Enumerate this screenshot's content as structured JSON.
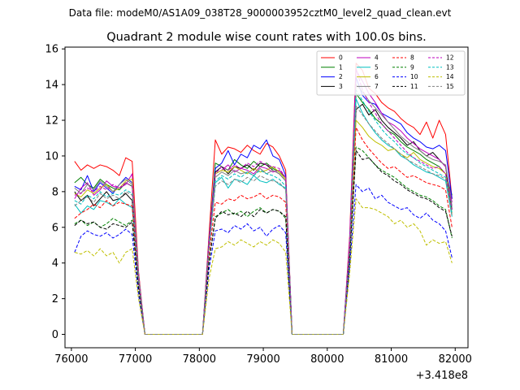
{
  "chart_data": {
    "type": "line",
    "suptitle": "Data file: modeM0/AS1A09_038T28_9000003952cztM0_level2_quad_clean.evt",
    "title": "Quadrant 2 module wise count rates with 100.0s bins.",
    "xlabel": "",
    "ylabel": "",
    "x_offset_label": "+3.418e8",
    "xlim": [
      75900,
      82200
    ],
    "ylim": [
      -0.75,
      16.1
    ],
    "x_ticks": [
      76000,
      77000,
      78000,
      79000,
      80000,
      81000,
      82000
    ],
    "x_tick_labels": [
      "76000",
      "77000",
      "78000",
      "79000",
      "80000",
      "81000",
      "82000"
    ],
    "y_ticks": [
      0,
      2,
      4,
      6,
      8,
      10,
      12,
      14,
      16
    ],
    "y_tick_labels": [
      "0",
      "2",
      "4",
      "6",
      "8",
      "10",
      "12",
      "14",
      "16"
    ],
    "grid": false,
    "legend_position": "upper right",
    "legend_columns": 4,
    "x": [
      76050,
      76150,
      76250,
      76350,
      76450,
      76550,
      76650,
      76750,
      76850,
      76950,
      77050,
      77150,
      77250,
      77350,
      77450,
      77550,
      77650,
      77750,
      77850,
      77950,
      78050,
      78150,
      78250,
      78350,
      78450,
      78550,
      78650,
      78750,
      78850,
      78950,
      79050,
      79150,
      79250,
      79350,
      79450,
      79550,
      79650,
      79750,
      79850,
      79950,
      80050,
      80150,
      80250,
      80350,
      80450,
      80550,
      80650,
      80750,
      80850,
      80950,
      81050,
      81150,
      81250,
      81350,
      81450,
      81550,
      81650,
      81750,
      81850,
      81950
    ],
    "series": [
      {
        "name": "0",
        "color": "#ff0000",
        "dash": false,
        "values": [
          9.7,
          9.2,
          9.5,
          9.3,
          9.5,
          9.4,
          9.2,
          8.9,
          9.9,
          9.7,
          3.5,
          0,
          0,
          0,
          0,
          0,
          0,
          0,
          0,
          0,
          0,
          5.5,
          10.9,
          10.1,
          10.5,
          10.4,
          10.2,
          10.6,
          10.3,
          10.1,
          10.7,
          10.5,
          10.0,
          9.2,
          0,
          0,
          0,
          0,
          0,
          0,
          0,
          0,
          0,
          5.5,
          15.2,
          14.8,
          13.8,
          13.5,
          13.0,
          12.7,
          12.5,
          12.1,
          11.8,
          11.6,
          11.2,
          11.9,
          11.0,
          12.0,
          11.2,
          7.6
        ]
      },
      {
        "name": "1",
        "color": "#008000",
        "dash": false,
        "values": [
          8.5,
          8.8,
          8.4,
          8.2,
          8.7,
          8.4,
          8.2,
          8.1,
          8.5,
          8.3,
          3.2,
          0,
          0,
          0,
          0,
          0,
          0,
          0,
          0,
          0,
          0,
          5.1,
          9.6,
          9.4,
          9.2,
          9.8,
          9.5,
          9.3,
          9.7,
          9.4,
          9.6,
          9.3,
          9.1,
          8.8,
          0,
          0,
          0,
          0,
          0,
          0,
          0,
          0,
          0,
          5.0,
          13.5,
          13.0,
          12.6,
          12.1,
          11.8,
          11.4,
          11.2,
          10.8,
          10.5,
          10.3,
          10.1,
          9.8,
          9.6,
          9.4,
          9.0,
          7.8
        ]
      },
      {
        "name": "2",
        "color": "#0000ff",
        "dash": false,
        "values": [
          8.3,
          8.1,
          8.9,
          8.0,
          8.5,
          8.2,
          7.9,
          8.4,
          8.8,
          8.5,
          3.3,
          0,
          0,
          0,
          0,
          0,
          0,
          0,
          0,
          0,
          0,
          5.2,
          9.3,
          9.6,
          10.3,
          9.5,
          10.1,
          9.9,
          10.6,
          10.4,
          10.9,
          10.0,
          9.8,
          8.9,
          0,
          0,
          0,
          0,
          0,
          0,
          0,
          0,
          0,
          5.2,
          14.4,
          13.4,
          13.0,
          12.9,
          12.4,
          12.2,
          12.0,
          11.8,
          11.3,
          11.0,
          10.8,
          10.5,
          10.4,
          10.6,
          10.3,
          7.6
        ]
      },
      {
        "name": "3",
        "color": "#000000",
        "dash": false,
        "values": [
          8.0,
          7.5,
          7.8,
          7.2,
          7.6,
          8.0,
          7.5,
          7.6,
          7.9,
          7.5,
          3.1,
          0,
          0,
          0,
          0,
          0,
          0,
          0,
          0,
          0,
          0,
          5.0,
          9.1,
          9.4,
          9.0,
          9.4,
          9.3,
          9.5,
          9.2,
          9.6,
          9.5,
          9.2,
          9.0,
          8.6,
          0,
          0,
          0,
          0,
          0,
          0,
          0,
          0,
          0,
          4.9,
          12.6,
          12.9,
          12.3,
          12.6,
          12.0,
          11.6,
          11.3,
          11.0,
          10.6,
          10.8,
          10.3,
          10.0,
          10.2,
          9.8,
          9.4,
          7.0
        ]
      },
      {
        "name": "4",
        "color": "#bf00bf",
        "dash": false,
        "values": [
          7.6,
          8.2,
          8.5,
          7.8,
          8.1,
          8.6,
          8.3,
          8.2,
          8.4,
          9.0,
          3.4,
          0,
          0,
          0,
          0,
          0,
          0,
          0,
          0,
          0,
          0,
          5.1,
          9.0,
          9.2,
          9.5,
          9.1,
          9.3,
          9.2,
          9.0,
          9.4,
          9.3,
          9.1,
          9.2,
          8.8,
          0,
          0,
          0,
          0,
          0,
          0,
          0,
          0,
          0,
          5.3,
          14.8,
          14.2,
          13.5,
          13.0,
          12.4,
          11.9,
          11.7,
          11.4,
          11.0,
          10.7,
          10.4,
          10.2,
          10.0,
          9.8,
          9.4,
          7.4
        ]
      },
      {
        "name": "5",
        "color": "#00bfbf",
        "dash": false,
        "values": [
          7.3,
          6.8,
          7.2,
          7.0,
          7.5,
          7.4,
          7.2,
          7.6,
          7.3,
          7.1,
          2.9,
          0,
          0,
          0,
          0,
          0,
          0,
          0,
          0,
          0,
          0,
          4.8,
          8.5,
          8.8,
          8.2,
          8.7,
          8.6,
          8.4,
          8.9,
          8.6,
          8.5,
          8.7,
          8.4,
          8.2,
          0,
          0,
          0,
          0,
          0,
          0,
          0,
          0,
          0,
          4.7,
          13.2,
          12.4,
          11.8,
          11.3,
          10.9,
          10.6,
          10.4,
          10.0,
          9.8,
          9.5,
          9.3,
          9.1,
          9.0,
          8.8,
          8.6,
          6.6
        ]
      },
      {
        "name": "6",
        "color": "#bfbf00",
        "dash": false,
        "values": [
          7.9,
          7.7,
          8.1,
          7.9,
          8.2,
          8.4,
          8.0,
          8.2,
          8.6,
          8.7,
          3.3,
          0,
          0,
          0,
          0,
          0,
          0,
          0,
          0,
          0,
          0,
          5.0,
          9.0,
          9.2,
          9.1,
          9.4,
          9.2,
          9.0,
          9.3,
          9.1,
          9.2,
          9.4,
          9.1,
          8.7,
          0,
          0,
          0,
          0,
          0,
          0,
          0,
          0,
          0,
          4.8,
          12.0,
          11.6,
          11.1,
          10.8,
          10.6,
          10.3,
          10.4,
          10.1,
          9.9,
          10.2,
          9.8,
          9.6,
          9.4,
          9.3,
          9.0,
          6.8
        ]
      },
      {
        "name": "7",
        "color": "#808080",
        "dash": false,
        "values": [
          8.2,
          7.9,
          8.4,
          8.1,
          8.6,
          8.3,
          8.0,
          8.4,
          8.7,
          8.4,
          3.3,
          0,
          0,
          0,
          0,
          0,
          0,
          0,
          0,
          0,
          0,
          5.0,
          8.8,
          9.1,
          8.9,
          9.2,
          9.0,
          9.1,
          8.9,
          9.3,
          9.0,
          9.2,
          9.0,
          8.6,
          0,
          0,
          0,
          0,
          0,
          0,
          0,
          0,
          0,
          5.0,
          14.0,
          13.6,
          13.1,
          12.7,
          12.3,
          11.9,
          11.5,
          11.1,
          10.8,
          10.5,
          10.3,
          10.0,
          9.8,
          9.7,
          9.5,
          7.2
        ]
      },
      {
        "name": "8",
        "color": "#ff0000",
        "dash": true,
        "values": [
          6.5,
          6.8,
          7.0,
          7.3,
          7.1,
          7.5,
          7.2,
          7.4,
          7.3,
          7.2,
          2.8,
          0,
          0,
          0,
          0,
          0,
          0,
          0,
          0,
          0,
          0,
          4.4,
          7.4,
          7.3,
          7.6,
          7.5,
          7.8,
          7.6,
          7.7,
          7.9,
          7.6,
          7.8,
          7.7,
          7.4,
          0,
          0,
          0,
          0,
          0,
          0,
          0,
          0,
          0,
          4.5,
          11.6,
          10.9,
          10.4,
          10.0,
          9.6,
          9.3,
          9.4,
          9.1,
          8.8,
          8.9,
          8.7,
          8.5,
          8.4,
          8.3,
          8.1,
          6.0
        ]
      },
      {
        "name": "9",
        "color": "#008000",
        "dash": true,
        "values": [
          6.2,
          6.4,
          6.1,
          6.3,
          6.0,
          6.2,
          6.5,
          6.3,
          6.1,
          6.4,
          2.6,
          0,
          0,
          0,
          0,
          0,
          0,
          0,
          0,
          0,
          0,
          4.0,
          6.6,
          6.8,
          7.0,
          6.7,
          6.9,
          6.6,
          6.9,
          7.1,
          6.8,
          7.0,
          6.9,
          6.5,
          0,
          0,
          0,
          0,
          0,
          0,
          0,
          0,
          0,
          4.3,
          10.5,
          10.3,
          9.9,
          9.5,
          9.2,
          9.0,
          8.8,
          8.5,
          8.2,
          8.0,
          7.8,
          7.7,
          7.5,
          7.2,
          7.0,
          5.4
        ]
      },
      {
        "name": "10",
        "color": "#0000ff",
        "dash": true,
        "values": [
          4.6,
          5.5,
          5.8,
          5.6,
          5.5,
          5.7,
          5.4,
          5.6,
          5.9,
          5.6,
          2.2,
          0,
          0,
          0,
          0,
          0,
          0,
          0,
          0,
          0,
          0,
          3.6,
          5.8,
          5.9,
          5.7,
          6.1,
          5.9,
          6.2,
          5.8,
          6.0,
          5.5,
          5.9,
          6.1,
          5.7,
          0,
          0,
          0,
          0,
          0,
          0,
          0,
          0,
          0,
          3.8,
          8.4,
          8.0,
          8.2,
          7.6,
          7.8,
          7.4,
          7.2,
          7.0,
          7.1,
          6.7,
          6.5,
          6.8,
          6.4,
          6.2,
          5.8,
          4.3
        ]
      },
      {
        "name": "11",
        "color": "#000000",
        "dash": true,
        "values": [
          6.1,
          6.4,
          6.2,
          6.3,
          6.0,
          5.9,
          6.2,
          6.1,
          6.0,
          6.3,
          2.6,
          0,
          0,
          0,
          0,
          0,
          0,
          0,
          0,
          0,
          0,
          4.0,
          6.5,
          6.9,
          6.7,
          6.8,
          6.6,
          6.9,
          6.6,
          7.0,
          6.8,
          7.0,
          6.9,
          6.6,
          0,
          0,
          0,
          0,
          0,
          0,
          0,
          0,
          0,
          4.2,
          10.3,
          9.8,
          9.9,
          9.5,
          9.1,
          8.9,
          8.6,
          8.4,
          8.1,
          7.9,
          7.7,
          7.6,
          7.4,
          7.1,
          6.9,
          5.5
        ]
      },
      {
        "name": "12",
        "color": "#bf00bf",
        "dash": true,
        "values": [
          7.8,
          7.9,
          8.2,
          8.0,
          8.3,
          8.1,
          8.4,
          8.2,
          8.5,
          8.3,
          3.2,
          0,
          0,
          0,
          0,
          0,
          0,
          0,
          0,
          0,
          0,
          5.0,
          9.0,
          9.4,
          9.2,
          9.5,
          9.3,
          9.6,
          9.4,
          9.7,
          9.5,
          9.4,
          9.3,
          8.8,
          0,
          0,
          0,
          0,
          0,
          0,
          0,
          0,
          0,
          5.1,
          14.9,
          13.7,
          13.0,
          12.4,
          11.8,
          11.4,
          11.0,
          10.6,
          10.2,
          9.9,
          9.7,
          9.5,
          9.3,
          9.4,
          9.0,
          7.0
        ]
      },
      {
        "name": "13",
        "color": "#00bfbf",
        "dash": true,
        "values": [
          7.5,
          7.3,
          7.8,
          7.6,
          8.0,
          7.7,
          7.9,
          7.8,
          8.1,
          7.9,
          3.1,
          0,
          0,
          0,
          0,
          0,
          0,
          0,
          0,
          0,
          0,
          4.8,
          8.6,
          8.9,
          8.7,
          9.0,
          8.8,
          9.1,
          8.9,
          9.2,
          9.0,
          8.9,
          8.7,
          8.3,
          0,
          0,
          0,
          0,
          0,
          0,
          0,
          0,
          0,
          4.8,
          13.7,
          13.1,
          12.5,
          12.0,
          11.5,
          11.1,
          10.8,
          10.4,
          10.1,
          9.9,
          9.6,
          9.4,
          9.2,
          9.0,
          8.8,
          6.8
        ]
      },
      {
        "name": "14",
        "color": "#bfbf00",
        "dash": true,
        "values": [
          4.6,
          4.5,
          4.7,
          4.4,
          4.8,
          4.4,
          4.6,
          4.0,
          4.6,
          4.8,
          2.0,
          0,
          0,
          0,
          0,
          0,
          0,
          0,
          0,
          0,
          0,
          3.1,
          4.8,
          4.9,
          5.2,
          5.0,
          5.3,
          5.1,
          4.9,
          5.2,
          5.0,
          5.3,
          5.1,
          4.6,
          0,
          0,
          0,
          0,
          0,
          0,
          0,
          0,
          0,
          3.4,
          7.6,
          7.1,
          7.1,
          7.0,
          6.8,
          6.6,
          6.2,
          6.4,
          6.0,
          6.2,
          5.8,
          5.0,
          5.3,
          5.1,
          5.2,
          4.0
        ]
      },
      {
        "name": "15",
        "color": "#808080",
        "dash": true,
        "values": [
          7.2,
          7.5,
          7.7,
          7.4,
          7.9,
          7.6,
          7.8,
          7.6,
          8.0,
          7.8,
          3.0,
          0,
          0,
          0,
          0,
          0,
          0,
          0,
          0,
          0,
          0,
          4.7,
          8.3,
          8.6,
          8.4,
          8.7,
          8.5,
          8.8,
          8.6,
          8.9,
          8.7,
          8.6,
          8.5,
          8.1,
          0,
          0,
          0,
          0,
          0,
          0,
          0,
          0,
          0,
          4.7,
          12.8,
          12.3,
          11.8,
          11.4,
          11.0,
          10.7,
          10.4,
          10.1,
          9.8,
          9.6,
          9.4,
          9.2,
          9.0,
          8.9,
          8.7,
          6.7
        ]
      }
    ]
  }
}
